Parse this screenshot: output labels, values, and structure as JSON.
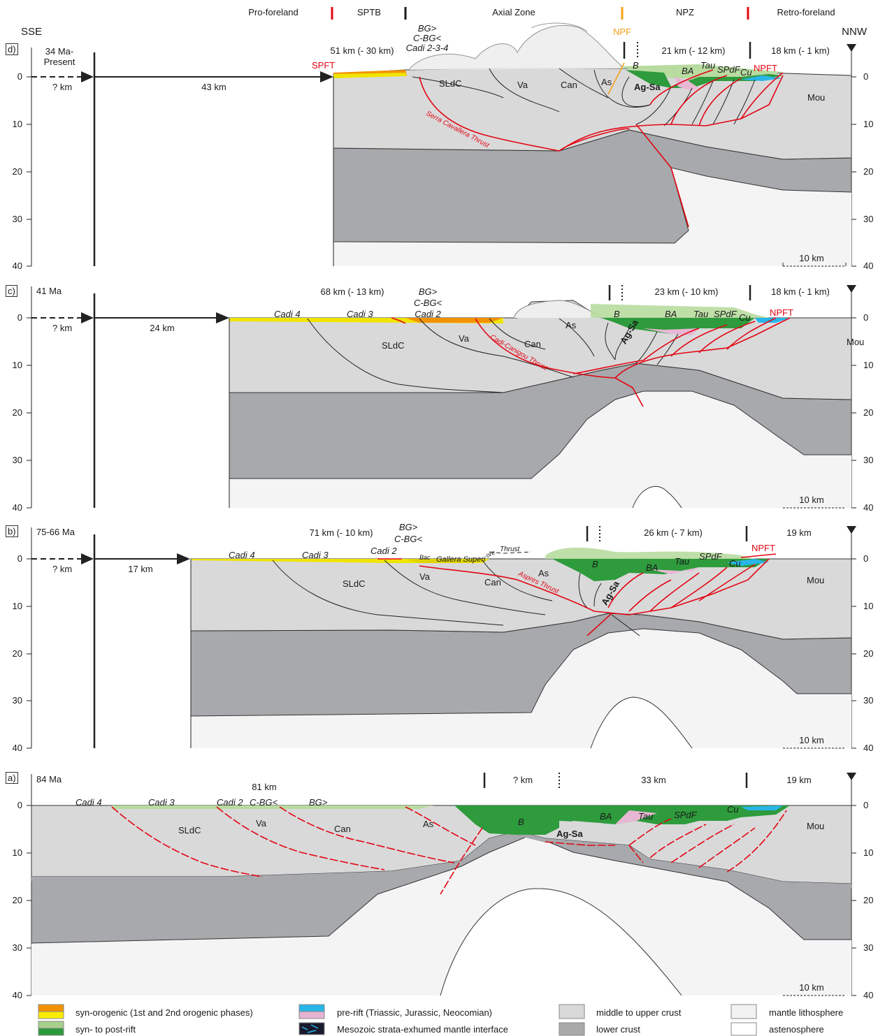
{
  "header": {
    "domains": [
      "Pro-foreland",
      "SPTB",
      "Axial Zone",
      "NPZ",
      "Retro-foreland"
    ],
    "left_dir": "SSE",
    "right_dir": "NNW",
    "npf": "NPF"
  },
  "axis_ticks": [
    "0",
    "10",
    "20",
    "30",
    "40"
  ],
  "scale_bar": "10 km",
  "panels": {
    "d": {
      "tag": "d)",
      "age": "34 Ma-\nPresent",
      "unknown": "? km",
      "shift": "43 km",
      "seg1": "51 km (- 30 km)",
      "seg2": "21 km (- 12 km)",
      "seg3": "18 km (- 1 km)",
      "labels": {
        "spft": "SPFT",
        "npft": "NPFT",
        "bg": "BG>",
        "cbg": "C-BG<",
        "cadi": "Cadi 2-3-4",
        "sldc": "SLdC",
        "va": "Va",
        "can": "Can",
        "as": "As",
        "agsa": "Ag-Sa",
        "b": "B",
        "ba": "BA",
        "tau": "Tau",
        "spdf": "SPdF",
        "cu": "Cu",
        "mou": "Mou",
        "thrust": "Serra Cavallera Thrust"
      }
    },
    "c": {
      "tag": "c)",
      "age": "41 Ma",
      "unknown": "? km",
      "shift": "24 km",
      "seg1": "68 km (- 13 km)",
      "seg2": "23 km (- 10 km)",
      "seg3": "18 km (- 1 km)",
      "labels": {
        "npft": "NPFT",
        "bg": "BG>",
        "cbg": "C-BG<",
        "cadi2": "Cadi 2",
        "cadi3": "Cadi 3",
        "cadi4": "Cadi 4",
        "sldc": "SLdC",
        "va": "Va",
        "can": "Can",
        "as": "As",
        "agsa": "Ag-Sa",
        "b": "B",
        "ba": "BA",
        "tau": "Tau",
        "spdf": "SPdF",
        "cu": "Cu",
        "mou": "Mou",
        "thrust": "Cadi-Canigou Thrust"
      }
    },
    "b": {
      "tag": "b)",
      "age": "75-66 Ma",
      "unknown": "? km",
      "shift": "17 km",
      "seg1": "71 km (- 10 km)",
      "seg2": "26 km (- 7 km)",
      "seg3": "19 km",
      "labels": {
        "npft": "NPFT",
        "bg": "BG>",
        "cbg": "C-BG<",
        "cadi2": "Cadi 2",
        "cadi3": "Cadi 3",
        "cadi4": "Cadi 4",
        "sldc": "SLdC",
        "va": "Va",
        "can": "Can",
        "as": "As",
        "agsa": "Ag-Sa",
        "b": "B",
        "ba": "BA",
        "tau": "Tau",
        "spdf": "SPdF",
        "cu": "Cu",
        "mou": "Mou",
        "thrust": "Aspres Thrust",
        "thrust2": "Thrust",
        "bac": "Bac",
        "galera": "Gallera Superi",
        "ore": "ore"
      }
    },
    "a": {
      "tag": "a)",
      "age": "84 Ma",
      "seg1": "81 km",
      "seg2": "? km",
      "seg3": "33 km",
      "seg4": "19 km",
      "labels": {
        "cadi2": "Cadi 2",
        "cadi3": "Cadi 3",
        "cadi4": "Cadi 4",
        "cbg": "C-BG<",
        "bg": "BG>",
        "sldc": "SLdC",
        "va": "Va",
        "can": "Can",
        "as": "As",
        "agsa": "Ag-Sa",
        "b": "B",
        "ba": "BA",
        "tau": "Tau",
        "spdf": "SPdF",
        "cu": "Cu",
        "mou": "Mou"
      }
    }
  },
  "legend": [
    {
      "label": "syn-orogenic (1st and 2nd orogenic phases)",
      "colors": [
        "#f39200",
        "#ffed00"
      ]
    },
    {
      "label": "syn- to post-rift",
      "colors": [
        "#a8d08d",
        "#2b9a3a"
      ]
    },
    {
      "label": "pre-rift (Triassic, Jurassic, Neocomian)",
      "colors": [
        "#29b5e8",
        "#e6b3d3"
      ]
    },
    {
      "label": "Mesozoic strata-exhumed mantle interface",
      "colors": [
        "#1a1a2e"
      ]
    },
    {
      "label": "middle to upper crust",
      "colors": [
        "#d8d8d8"
      ]
    },
    {
      "label": "lower crust",
      "colors": [
        "#a9a9a9"
      ]
    },
    {
      "label": "mantle lithosphere",
      "colors": [
        "#f2f2f2"
      ]
    },
    {
      "label": "astenosphere",
      "colors": [
        "#ffffff"
      ]
    }
  ],
  "colors": {
    "upper_crust": "#d9d9da",
    "lower_crust": "#a7a9ac",
    "mantle": "#f3f3f3",
    "thrust": "#e30613",
    "green": "#2e9b3c",
    "light_green": "#b8dba0",
    "blue": "#29b5e8",
    "pink": "#e8b7d4",
    "orange": "#f39200",
    "yellow": "#f0e400"
  }
}
